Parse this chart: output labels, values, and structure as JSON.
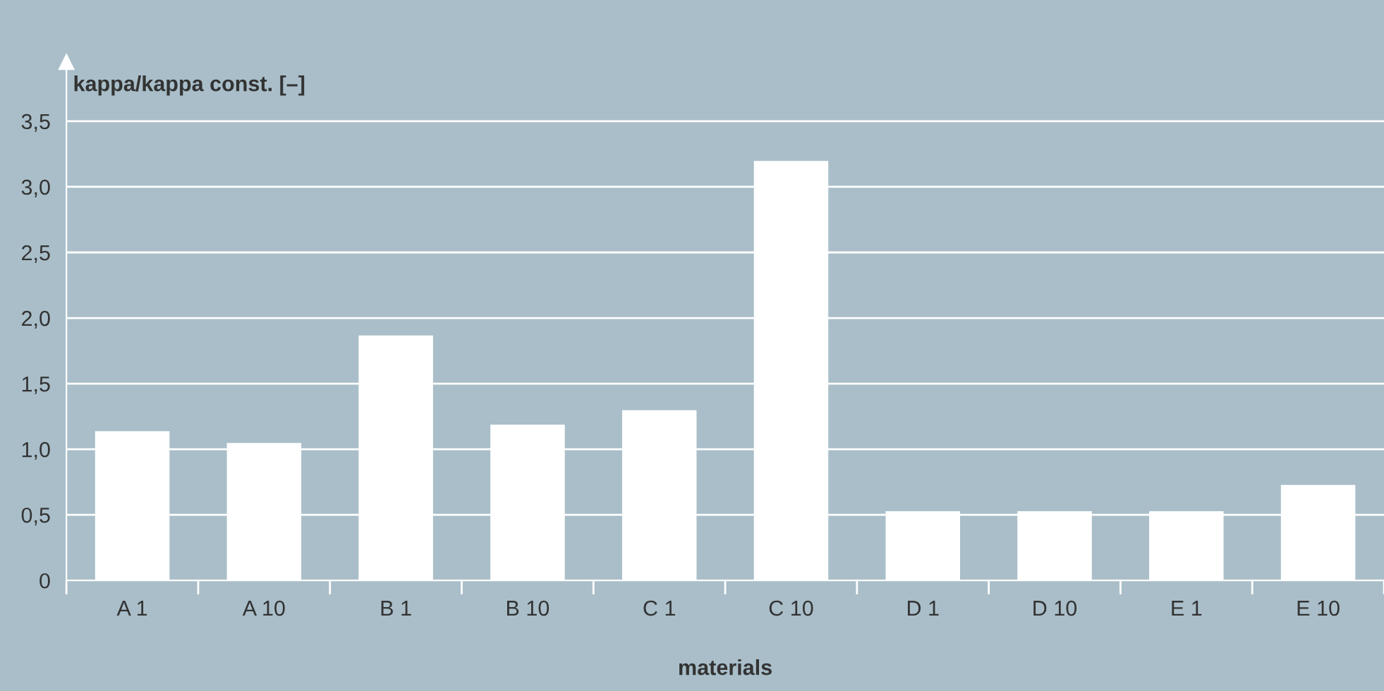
{
  "chart_data": {
    "type": "bar",
    "ylabel": "kappa/kappa const. [–]",
    "xlabel": "materials",
    "categories": [
      "A 1",
      "A 10",
      "B 1",
      "B 10",
      "C 1",
      "C 10",
      "D 1",
      "D 10",
      "E 1",
      "E 10"
    ],
    "values": [
      1.13,
      1.04,
      1.86,
      1.18,
      1.29,
      3.19,
      0.52,
      0.52,
      0.52,
      0.72
    ],
    "color": "#ffffff",
    "ylim": [
      0,
      3.95
    ],
    "yticks": [
      0,
      {
        "value": 0.5,
        "label": "0,5"
      },
      {
        "value": 1.0,
        "label": "1,0"
      },
      {
        "value": 1.5,
        "label": "1,5"
      },
      {
        "value": 2.0,
        "label": "2,0"
      },
      {
        "value": 2.5,
        "label": "2,5"
      },
      {
        "value": 3.0,
        "label": "3,0"
      },
      {
        "value": 3.5,
        "label": "3,5"
      }
    ],
    "grid": "y",
    "legend": false
  }
}
